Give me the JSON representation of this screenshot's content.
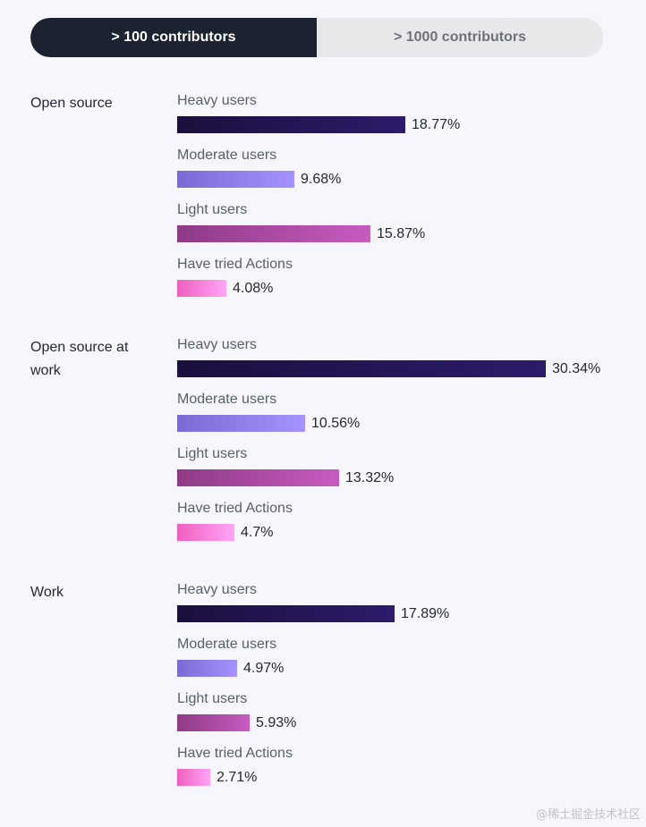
{
  "toggle": {
    "option_active": "> 100 contributors",
    "option_inactive": "> 1000 contributors"
  },
  "colors": {
    "heavy": "#2d1b6b",
    "moderate": "#a592ff",
    "light": "#c75bc0",
    "tried": "#ffa5f6"
  },
  "chart_data": {
    "type": "bar",
    "orientation": "horizontal",
    "unit": "%",
    "categories": [
      "Heavy users",
      "Moderate users",
      "Light users",
      "Have tried Actions"
    ],
    "groups": [
      {
        "title": "Open source",
        "values": [
          18.77,
          9.68,
          15.87,
          4.08
        ],
        "labels": [
          "18.77%",
          "9.68%",
          "15.87%",
          "4.08%"
        ]
      },
      {
        "title": "Open source at work",
        "values": [
          30.34,
          10.56,
          13.32,
          4.7
        ],
        "labels": [
          "30.34%",
          "10.56%",
          "13.32%",
          "4.7%"
        ]
      },
      {
        "title": "Work",
        "values": [
          17.89,
          4.97,
          5.93,
          2.71
        ],
        "labels": [
          "17.89%",
          "4.97%",
          "5.93%",
          "2.71%"
        ]
      }
    ]
  },
  "watermark": "@稀土掘金技术社区"
}
